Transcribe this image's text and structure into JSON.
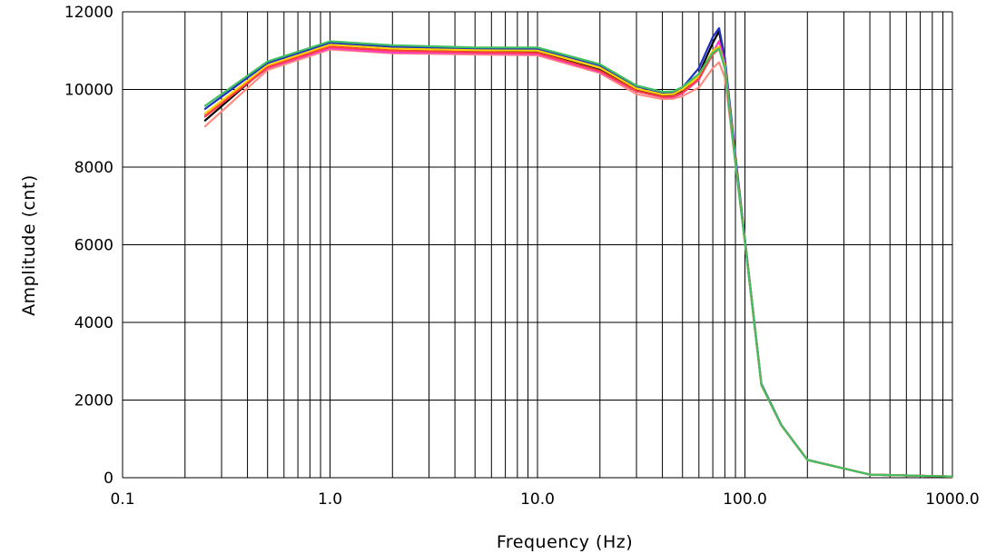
{
  "chart_data": {
    "type": "line",
    "title": "",
    "xlabel": "Frequency (Hz)",
    "ylabel": "Amplitude (cnt)",
    "x_scale": "log",
    "xlim": [
      0.1,
      1000
    ],
    "ylim": [
      0,
      12000
    ],
    "x_tick_labels": [
      {
        "value": 0.1,
        "label": "0.1"
      },
      {
        "value": 1,
        "label": "1.0"
      },
      {
        "value": 10,
        "label": "10.0"
      },
      {
        "value": 100,
        "label": "100.0"
      },
      {
        "value": 1000,
        "label": "1000.0"
      }
    ],
    "y_ticks": [
      0,
      2000,
      4000,
      6000,
      8000,
      10000,
      12000
    ],
    "y_tick_labels": [
      "0",
      "2000",
      "4000",
      "6000",
      "8000",
      "10000",
      "12000"
    ],
    "grid": true,
    "legend": "none",
    "x": [
      0.25,
      0.5,
      1,
      2,
      5,
      10,
      20,
      30,
      40,
      45,
      50,
      60,
      70,
      75,
      80,
      90,
      100,
      120,
      150,
      200,
      400,
      1000
    ],
    "series": [
      {
        "color": "#000000",
        "values": [
          9200,
          10600,
          11100,
          11020,
          10980,
          10960,
          10500,
          10000,
          9850,
          9850,
          9950,
          10400,
          11200,
          11500,
          10700,
          8200,
          6100,
          2400,
          1350,
          460,
          80,
          30
        ]
      },
      {
        "color": "#1f2fbf",
        "values": [
          9500,
          10680,
          11200,
          11100,
          11050,
          11050,
          10620,
          10080,
          9920,
          9930,
          10050,
          10550,
          11350,
          11580,
          10800,
          8300,
          6150,
          2420,
          1360,
          460,
          80,
          30
        ]
      },
      {
        "color": "#ff8c80",
        "values": [
          9050,
          10500,
          11030,
          10930,
          10900,
          10880,
          10420,
          9880,
          9750,
          9760,
          9830,
          10050,
          10550,
          10700,
          10300,
          8100,
          6050,
          2380,
          1340,
          455,
          80,
          30
        ]
      },
      {
        "color": "#ff40c0",
        "values": [
          9350,
          10550,
          11060,
          10950,
          10930,
          10910,
          10450,
          9950,
          9800,
          9800,
          9900,
          10250,
          10950,
          11250,
          10650,
          8180,
          6100,
          2400,
          1350,
          460,
          80,
          30
        ]
      },
      {
        "color": "#ffd000",
        "values": [
          9380,
          10620,
          11150,
          11050,
          11010,
          11000,
          10560,
          10020,
          9870,
          9880,
          10000,
          10350,
          11000,
          11100,
          10600,
          8150,
          6080,
          2390,
          1350,
          458,
          80,
          30
        ]
      },
      {
        "color": "#ff4040",
        "values": [
          9300,
          10570,
          11100,
          11000,
          10960,
          10940,
          10480,
          9960,
          9810,
          9820,
          9920,
          10280,
          10900,
          11050,
          10550,
          8120,
          6070,
          2390,
          1345,
          457,
          80,
          30
        ]
      },
      {
        "color": "#40c060",
        "values": [
          9580,
          10720,
          11240,
          11140,
          11080,
          11080,
          10650,
          10100,
          9940,
          9950,
          10060,
          10400,
          10950,
          11050,
          10550,
          8100,
          6060,
          2390,
          1345,
          457,
          80,
          30
        ]
      }
    ]
  }
}
